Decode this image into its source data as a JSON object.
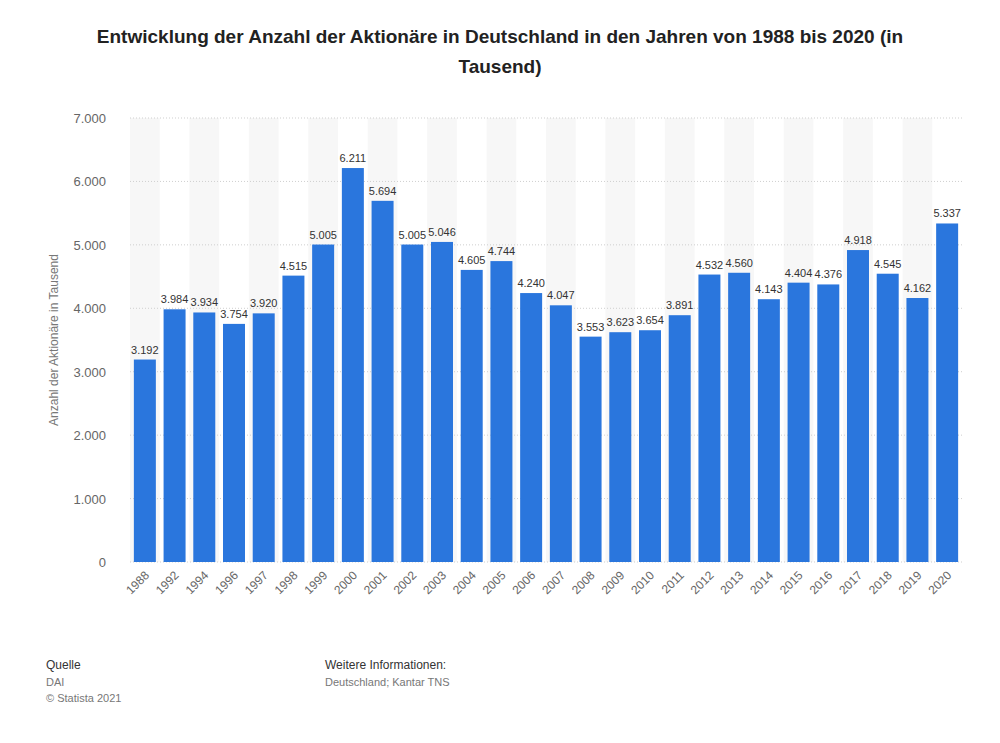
{
  "chart_data": {
    "type": "bar",
    "title": "Entwicklung der Anzahl der Aktionäre in Deutschland in den Jahren von 1988 bis 2020 (in Tausend)",
    "y_label": "Anzahl der Aktionäre in Tausend",
    "categories": [
      "1988",
      "1992",
      "1994",
      "1996",
      "1997",
      "1998",
      "1999",
      "2000",
      "2001",
      "2002",
      "2003",
      "2004",
      "2005",
      "2006",
      "2007",
      "2008",
      "2009",
      "2010",
      "2011",
      "2012",
      "2013",
      "2014",
      "2015",
      "2016",
      "2017",
      "2018",
      "2019",
      "2020"
    ],
    "values": [
      3192,
      3984,
      3934,
      3754,
      3920,
      4515,
      5005,
      6211,
      5694,
      5005,
      5046,
      4605,
      4744,
      4240,
      4047,
      3553,
      3623,
      3654,
      3891,
      4532,
      4560,
      4143,
      4404,
      4376,
      4918,
      4545,
      4162,
      5337
    ],
    "value_labels": [
      "3.192",
      "3.984",
      "3.934",
      "3.754",
      "3.920",
      "4.515",
      "5.005",
      "6.211",
      "5.694",
      "5.005",
      "5.046",
      "4.605",
      "4.744",
      "4.240",
      "4.047",
      "3.553",
      "3.623",
      "3.654",
      "3.891",
      "4.532",
      "4.560",
      "4.143",
      "4.404",
      "4.376",
      "4.918",
      "4.545",
      "4.162",
      "5.337"
    ],
    "color": "#2a76dd",
    "ylim": [
      0,
      7000
    ],
    "yticks": [
      0,
      {
        "value": 1000,
        "label": "1.000"
      },
      {
        "value": 2000,
        "label": "2.000"
      },
      {
        "value": 3000,
        "label": "3.000"
      },
      {
        "value": 4000,
        "label": "4.000"
      },
      {
        "value": 5000,
        "label": "5.000"
      },
      {
        "value": 6000,
        "label": "6.000"
      },
      {
        "value": 7000,
        "label": "7.000"
      }
    ],
    "grid": true,
    "data_labels": true,
    "source_heading": "Quelle",
    "source": "DAI",
    "copyright": "© Statista 2021",
    "info_heading": "Weitere Informationen:",
    "info": "Deutschland; Kantar TNS"
  }
}
